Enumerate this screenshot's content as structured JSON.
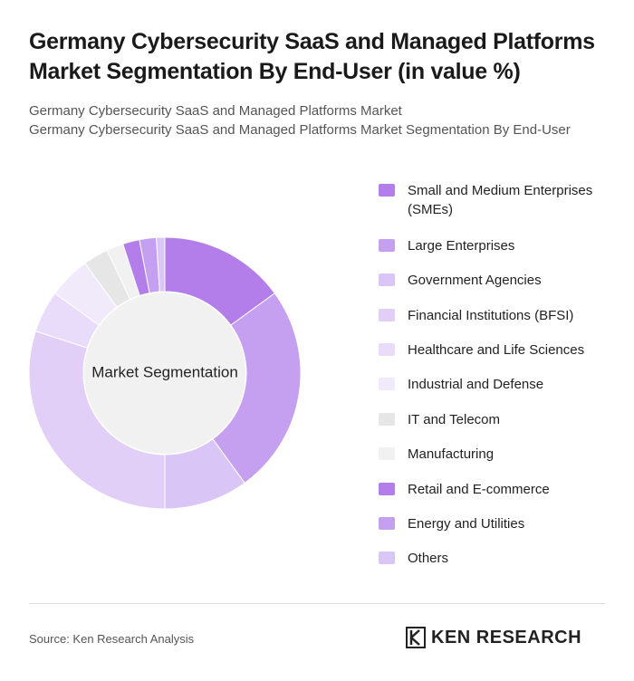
{
  "chart_data": {
    "type": "donut",
    "title": "Germany Cybersecurity SaaS and Managed Platforms Market Segmentation By End-User (in value %)",
    "subtitle": [
      "Germany Cybersecurity SaaS and Managed Platforms Market",
      "Germany Cybersecurity SaaS and Managed Platforms Market Segmentation By End-User"
    ],
    "center_label": "Market Segmentation",
    "categories": [
      "Small and Medium Enterprises (SMEs)",
      "Large Enterprises",
      "Government Agencies",
      "Financial Institutions (BFSI)",
      "Healthcare and Life Sciences",
      "Industrial and Defense",
      "IT and Telecom",
      "Manufacturing",
      "Retail and E-commerce",
      "Energy and Utilities",
      "Others"
    ],
    "values": [
      15,
      25,
      10,
      30,
      5,
      5,
      3,
      2,
      2,
      2,
      1
    ],
    "colors": [
      "#b37ee9",
      "#c5a0f0",
      "#dac6f6",
      "#e1cff8",
      "#e9dcfa",
      "#f1eafb",
      "#e6e6e6",
      "#f1f1f1",
      "#b37ee9",
      "#c5a0f0",
      "#dac6f6"
    ],
    "source": "Source: Ken Research Analysis",
    "brand": "KEN RESEARCH"
  }
}
